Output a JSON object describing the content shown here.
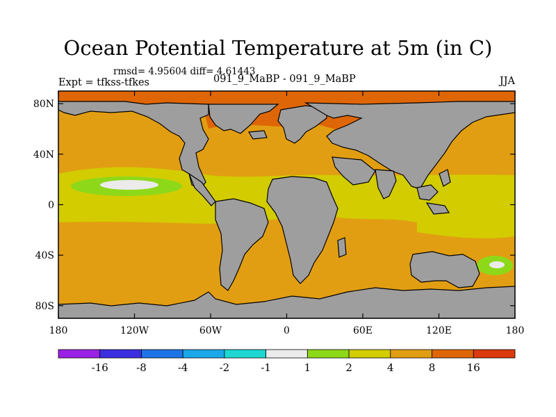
{
  "title": "Ocean Potential Temperature at 5m (in C)",
  "stats": "rmsd= 4.95604 diff= 4.61443",
  "experiment": "Expt = tfkss-tfkes",
  "cases": "091_9_MaBP - 091_9_MaBP",
  "season": "JJA",
  "colors": {
    "land": "#9e9e9e",
    "level_lt_neg16": "#9a22e6",
    "level_neg16_neg8": "#3b2fe0",
    "level_neg8_neg4": "#1e74e6",
    "level_neg4_neg2": "#1aa8e8",
    "level_neg2_neg1": "#1ed7d2",
    "level_neg1_1": "#ebebeb",
    "level_1_2": "#8ed81a",
    "level_2_4": "#d2cc00",
    "level_4_8": "#e29e12",
    "level_8_16": "#df6606",
    "level_gt_16": "#dc3a0c"
  },
  "chart_data": {
    "type": "heatmap",
    "projection": "cylindrical equidistant",
    "x_axis": {
      "range": [
        -180,
        180
      ],
      "tick_values": [
        -180,
        -120,
        -60,
        0,
        60,
        120,
        180
      ],
      "tick_labels": [
        "180",
        "120W",
        "60W",
        "0",
        "60E",
        "120E",
        "180"
      ]
    },
    "y_axis": {
      "range": [
        -90,
        90
      ],
      "tick_values": [
        80,
        40,
        0,
        -40,
        -80
      ],
      "tick_labels": [
        "80N",
        "40N",
        "0",
        "40S",
        "80S"
      ]
    },
    "colorbar": {
      "orientation": "horizontal",
      "boundaries": [
        -16,
        -8,
        -4,
        -2,
        -1,
        1,
        2,
        4,
        8,
        16
      ],
      "labels": [
        "-16",
        "-8",
        "-4",
        "-2",
        "-1",
        "1",
        "2",
        "4",
        "8",
        "16"
      ]
    }
  }
}
